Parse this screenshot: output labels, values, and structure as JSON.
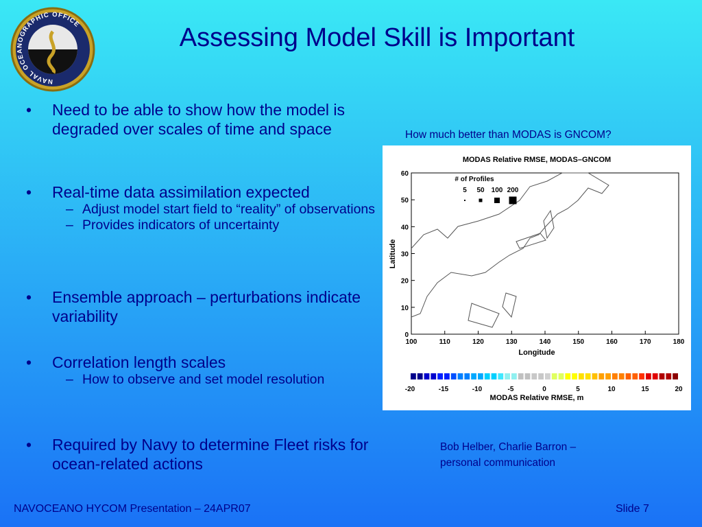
{
  "header": {
    "title": "Assessing Model Skill is Important"
  },
  "logo": {
    "text": "NAVAL OCEANOGRAPHIC OFFICE"
  },
  "bullets": [
    {
      "text": "Need to be able to show how the model is degraded over scales of time and space",
      "sub": []
    },
    {
      "text": "Real-time data assimilation expected",
      "sub": [
        "Adjust model start field to “reality” of observations",
        "Provides indicators of uncertainty"
      ]
    },
    {
      "text": "Ensemble approach – perturbations indicate variability",
      "sub": []
    },
    {
      "text": "Correlation length scales",
      "sub": [
        "How to observe and set model resolution"
      ]
    },
    {
      "text": "Required by Navy to determine Fleet risks for ocean-related actions",
      "sub": []
    }
  ],
  "figure": {
    "caption": "How much better than MODAS is GNCOM?",
    "title": "MODAS Relative RMSE, MODAS–GNCOM",
    "x_label": "Longitude",
    "y_label": "Latitude",
    "xticks": [
      100,
      110,
      120,
      130,
      140,
      150,
      160,
      170,
      180
    ],
    "yticks": [
      0,
      10,
      20,
      30,
      40,
      50,
      60
    ],
    "legend": {
      "title": "# of Profiles",
      "sizes": [
        5,
        50,
        100,
        200
      ]
    },
    "colorbar": {
      "label": "MODAS Relative RMSE, m",
      "ticks": [
        -20,
        -15,
        -10,
        -5,
        0,
        5,
        10,
        15,
        20
      ]
    }
  },
  "credit": [
    "Bob Helber, Charlie Barron –",
    "personal communication"
  ],
  "footer": {
    "left": "NAVOCEANO HYCOM Presentation – 24APR07",
    "right": "Slide 7"
  }
}
